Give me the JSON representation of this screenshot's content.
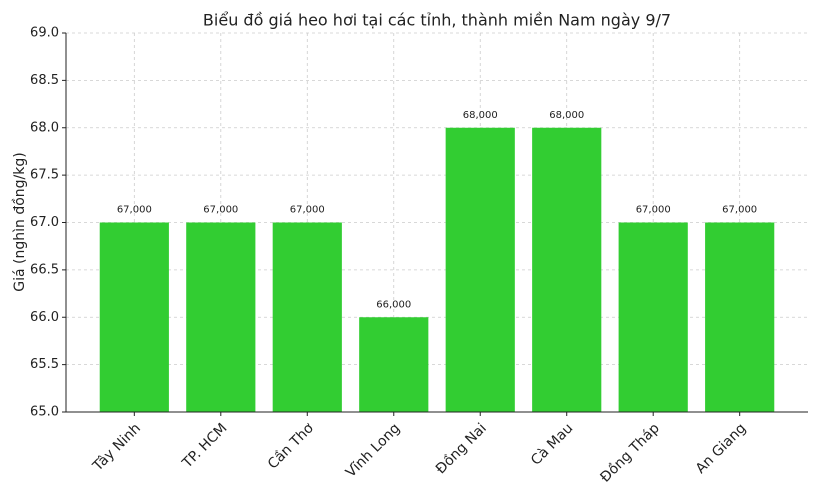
{
  "chart_data": {
    "type": "bar",
    "title": "Biểu đồ giá heo hơi tại các tỉnh, thành miền Nam ngày 9/7",
    "y_label": "Giá (nghìn đồng/kg)",
    "categories": [
      "Tây Ninh",
      "TP. HCM",
      "Cần Thơ",
      "Vĩnh Long",
      "Đồng Nai",
      "Cà Mau",
      "Đồng Tháp",
      "An Giang"
    ],
    "values": [
      67,
      67,
      67,
      66,
      68,
      68,
      67,
      67
    ],
    "value_labels": [
      "67,000",
      "67,000",
      "67,000",
      "66,000",
      "68,000",
      "68,000",
      "67,000",
      "67,000"
    ],
    "color": "#32cd32",
    "ylim": [
      65,
      69
    ],
    "yticks": [
      {
        "value": 65,
        "label": "65.0"
      },
      65.5,
      {
        "value": 66,
        "label": "66.0"
      },
      66.5,
      {
        "value": 67,
        "label": "67.0"
      },
      67.5,
      {
        "value": 68,
        "label": "68.0"
      },
      68.5,
      {
        "value": 69,
        "label": "69.0"
      }
    ],
    "grid": true
  }
}
